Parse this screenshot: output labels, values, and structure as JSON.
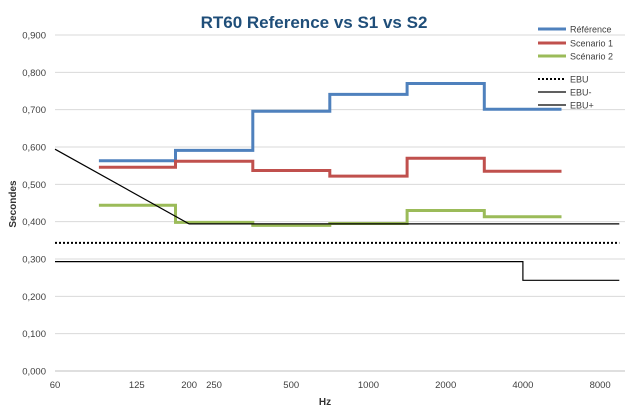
{
  "chart_data": {
    "type": "line",
    "title": "RT60 Reference vs S1 vs S2",
    "xlabel": "Hz",
    "ylabel": "Secondes",
    "x_scale": "log",
    "xlim": [
      60,
      10000
    ],
    "ylim": [
      0,
      0.9
    ],
    "grid": true,
    "legend_position": "top-right",
    "x_ticks": [
      {
        "value": 60,
        "label": "60"
      },
      {
        "value": 125,
        "label": "125"
      },
      {
        "value": 200,
        "label": "200"
      },
      {
        "value": 250,
        "label": "250"
      },
      {
        "value": 500,
        "label": "500"
      },
      {
        "value": 1000,
        "label": "1000"
      },
      {
        "value": 2000,
        "label": "2000"
      },
      {
        "value": 4000,
        "label": "4000"
      },
      {
        "value": 8000,
        "label": "8000"
      }
    ],
    "y_ticks": [
      {
        "value": 0,
        "label": "0,000"
      },
      {
        "value": 0.1,
        "label": "0,100"
      },
      {
        "value": 0.2,
        "label": "0,200"
      },
      {
        "value": 0.3,
        "label": "0,300"
      },
      {
        "value": 0.4,
        "label": "0,400"
      },
      {
        "value": 0.5,
        "label": "0,500"
      },
      {
        "value": 0.6,
        "label": "0,600"
      },
      {
        "value": 0.7,
        "label": "0,700"
      },
      {
        "value": 0.8,
        "label": "0,800"
      },
      {
        "value": 0.9,
        "label": "0,900"
      }
    ],
    "series": [
      {
        "name": "Référence",
        "color": "#4f81bd",
        "style": "solid",
        "width": 3,
        "points": [
          [
            89,
            0.563
          ],
          [
            177,
            0.563
          ],
          [
            177,
            0.591
          ],
          [
            354,
            0.591
          ],
          [
            354,
            0.696
          ],
          [
            707,
            0.696
          ],
          [
            707,
            0.741
          ],
          [
            1414,
            0.741
          ],
          [
            1414,
            0.77
          ],
          [
            2828,
            0.77
          ],
          [
            2828,
            0.701
          ],
          [
            5657,
            0.701
          ]
        ]
      },
      {
        "name": "Scenario 1",
        "color": "#c0504d",
        "style": "solid",
        "width": 3,
        "points": [
          [
            89,
            0.546
          ],
          [
            177,
            0.546
          ],
          [
            177,
            0.562
          ],
          [
            354,
            0.562
          ],
          [
            354,
            0.537
          ],
          [
            707,
            0.537
          ],
          [
            707,
            0.522
          ],
          [
            1414,
            0.522
          ],
          [
            1414,
            0.57
          ],
          [
            2828,
            0.57
          ],
          [
            2828,
            0.535
          ],
          [
            5657,
            0.535
          ]
        ]
      },
      {
        "name": "Scénario 2",
        "color": "#9bbb59",
        "style": "solid",
        "width": 3,
        "points": [
          [
            89,
            0.444
          ],
          [
            177,
            0.444
          ],
          [
            177,
            0.398
          ],
          [
            354,
            0.398
          ],
          [
            354,
            0.39
          ],
          [
            707,
            0.39
          ],
          [
            707,
            0.395
          ],
          [
            1414,
            0.395
          ],
          [
            1414,
            0.43
          ],
          [
            2828,
            0.43
          ],
          [
            2828,
            0.413
          ],
          [
            5657,
            0.413
          ]
        ]
      },
      {
        "name": "EBU",
        "color": "#000000",
        "style": "dotted",
        "width": 2,
        "points": [
          [
            60,
            0.343
          ],
          [
            9500,
            0.343
          ]
        ]
      },
      {
        "name": "EBU-",
        "color": "#000000",
        "style": "solid",
        "width": 1.2,
        "points": [
          [
            60,
            0.293
          ],
          [
            4000,
            0.293
          ],
          [
            4000,
            0.243
          ],
          [
            9500,
            0.243
          ]
        ]
      },
      {
        "name": "EBU+",
        "color": "#000000",
        "style": "solid",
        "width": 1.2,
        "points": [
          [
            60,
            0.594
          ],
          [
            200,
            0.394
          ],
          [
            9500,
            0.394
          ]
        ]
      }
    ]
  }
}
